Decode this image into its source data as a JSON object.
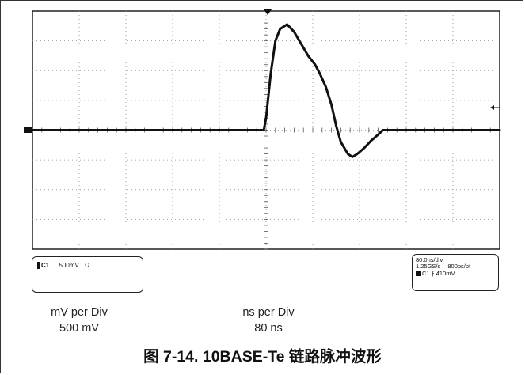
{
  "scope": {
    "channel_label": "C1",
    "channel_scale": "500mV",
    "coupling_symbol": "Ω",
    "timebase": "80.0ns/div",
    "sample_rate": "1.25GS/s",
    "sample_interval": "800ps/pt",
    "trigger_channel": "C1",
    "trigger_symbol": "⨍",
    "trigger_level": "410mV",
    "grid_divisions_x": 10,
    "grid_divisions_y": 8,
    "waveform_samples_div": [
      [
        0,
        4.0
      ],
      [
        4.95,
        4.0
      ],
      [
        5.0,
        4.4
      ],
      [
        5.1,
        5.9
      ],
      [
        5.2,
        7.0
      ],
      [
        5.3,
        7.4
      ],
      [
        5.45,
        7.55
      ],
      [
        5.6,
        7.3
      ],
      [
        5.75,
        6.9
      ],
      [
        5.9,
        6.5
      ],
      [
        6.05,
        6.2
      ],
      [
        6.15,
        5.9
      ],
      [
        6.28,
        5.45
      ],
      [
        6.4,
        4.85
      ],
      [
        6.5,
        4.15
      ],
      [
        6.6,
        3.6
      ],
      [
        6.75,
        3.2
      ],
      [
        6.85,
        3.1
      ],
      [
        6.95,
        3.2
      ],
      [
        7.1,
        3.4
      ],
      [
        7.25,
        3.65
      ],
      [
        7.4,
        3.85
      ],
      [
        7.5,
        4.0
      ],
      [
        10,
        4.0
      ]
    ]
  },
  "legend": {
    "vertical_label": "mV per Div",
    "vertical_value": "500 mV",
    "horizontal_label": "ns per Div",
    "horizontal_value": "80 ns"
  },
  "caption": "图 7-14. 10BASE-Te 链路脉冲波形"
}
